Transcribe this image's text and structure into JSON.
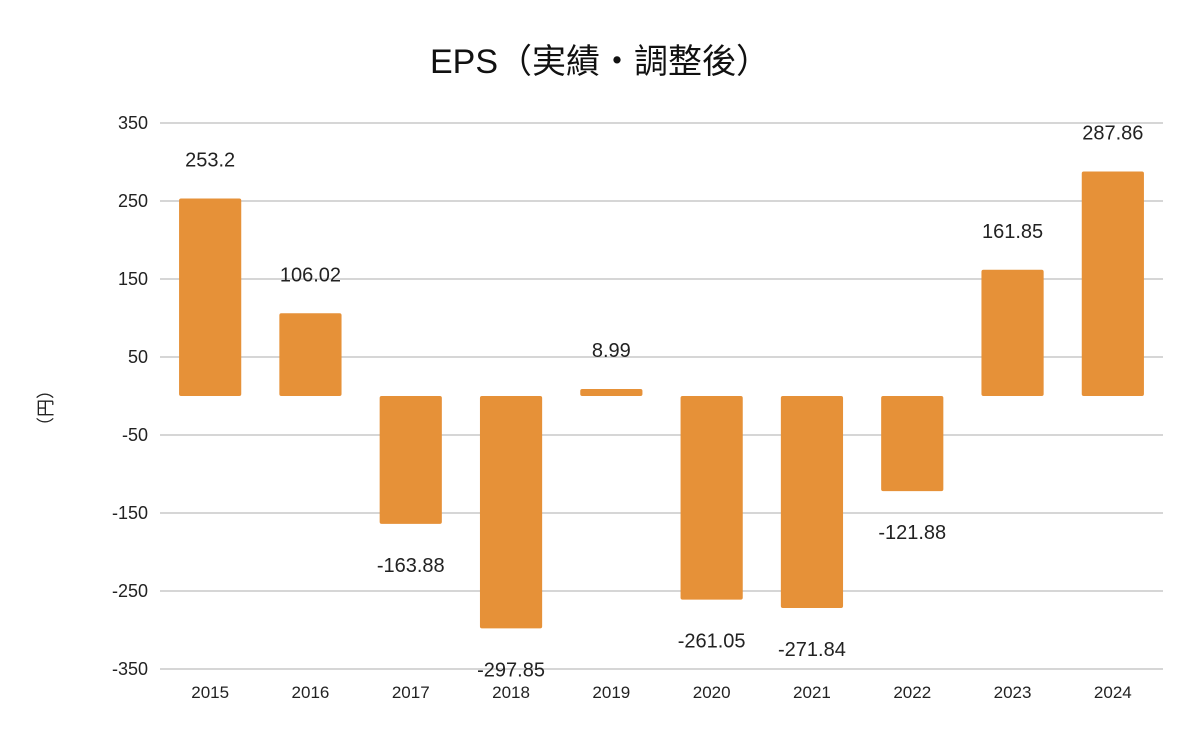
{
  "chart_data": {
    "type": "bar",
    "title": "EPS（実績・調整後）",
    "xlabel": "",
    "ylabel": "（円）",
    "categories": [
      "2015",
      "2016",
      "2017",
      "2018",
      "2019",
      "2020",
      "2021",
      "2022",
      "2023",
      "2024"
    ],
    "series": [
      {
        "values": [
          253.2,
          106.02,
          -163.88,
          -297.85,
          8.99,
          -261.05,
          -271.84,
          -121.88,
          161.85,
          287.86
        ],
        "labels": [
          "253.2",
          "106.02",
          "-163.88",
          "-297.85",
          "8.99",
          "-261.05",
          "-271.84",
          "-121.88",
          "161.85",
          "287.86"
        ],
        "color": "#E69138"
      }
    ],
    "ylim": [
      -350,
      350
    ],
    "yticks": [
      350,
      250,
      150,
      50,
      -50,
      -150,
      -250,
      -350
    ],
    "grid": true,
    "legend": "none"
  }
}
